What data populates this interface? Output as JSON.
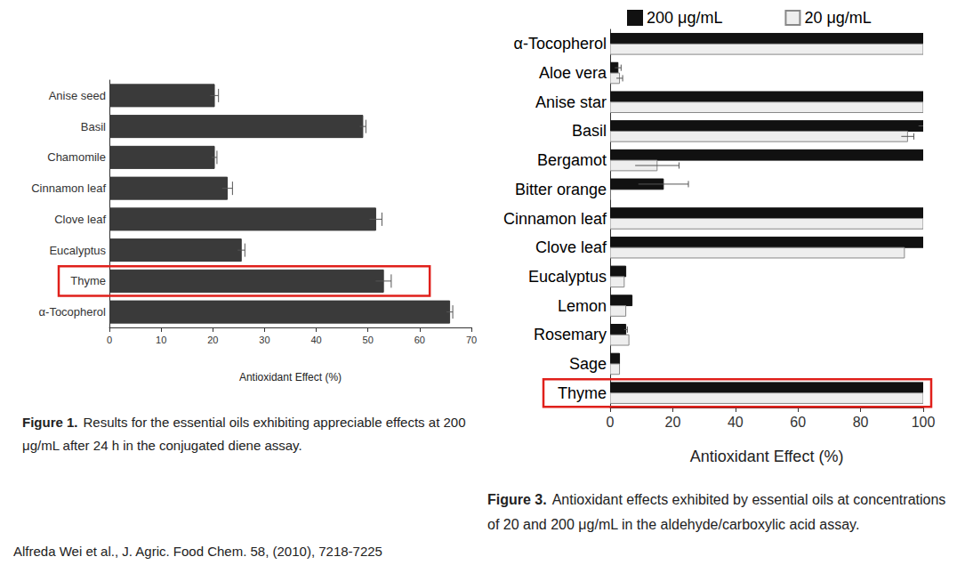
{
  "chart_data": [
    {
      "type": "bar",
      "orientation": "horizontal",
      "categories": [
        "Anise seed",
        "Basil",
        "Chamomile",
        "Cinnamon leaf",
        "Clove leaf",
        "Eucalyptus",
        "Thyme",
        "α-Tocopherol"
      ],
      "values": [
        20.3,
        49,
        20.3,
        22.8,
        51.5,
        25.5,
        53,
        65.8
      ],
      "errors": [
        0.8,
        0.6,
        0.5,
        1.0,
        1.2,
        0.7,
        1.5,
        0.6
      ],
      "color": "#3a3a3a",
      "xlabel": "Antioxidant Effect (%)",
      "xlim": [
        0,
        70
      ],
      "xticks": [
        0,
        10,
        20,
        30,
        40,
        50,
        60,
        70
      ],
      "grid": false,
      "caption": {
        "label": "Figure 1.",
        "text": "Results for the essential oils exhibiting appreciable effects at 200 μg/mL after 24 h in the conjugated diene assay."
      },
      "annotations": [
        {
          "shape": "box",
          "category": "Thyme",
          "color": "#e0201b"
        }
      ]
    },
    {
      "type": "bar",
      "orientation": "horizontal",
      "categories": [
        "α-Tocopherol",
        "Aloe vera",
        "Anise star",
        "Basil",
        "Bergamot",
        "Bitter orange",
        "Cinnamon leaf",
        "Clove leaf",
        "Eucalyptus",
        "Lemon",
        "Rosemary",
        "Sage",
        "Thyme"
      ],
      "series": [
        {
          "name": "200 μg/mL",
          "color": "#111111",
          "values": [
            100,
            2.5,
            100,
            100,
            100,
            17,
            100,
            100,
            5,
            7,
            5,
            3,
            100
          ],
          "errors": [
            0,
            1,
            0,
            1.5,
            0,
            8,
            0,
            0,
            0,
            0,
            0.5,
            0,
            0
          ]
        },
        {
          "name": "20 μg/mL",
          "color": "#eeeeee",
          "values": [
            100,
            3,
            100,
            95,
            15,
            0,
            100,
            94,
            4.5,
            5,
            6,
            3,
            100
          ],
          "errors": [
            0,
            1,
            0,
            2,
            7,
            0,
            0,
            0,
            0,
            0,
            0,
            0,
            0
          ]
        }
      ],
      "xlabel": "Antioxidant Effect (%)",
      "xlim": [
        0,
        100
      ],
      "xticks": [
        0,
        20,
        40,
        60,
        80,
        100
      ],
      "grid": false,
      "legend": "top",
      "caption": {
        "label": "Figure 3.",
        "text": "Antioxidant effects exhibited by essential oils at concentrations of 20 and 200 μg/mL in the aldehyde/carboxylic acid assay."
      },
      "annotations": [
        {
          "shape": "box",
          "category": "Thyme",
          "color": "#e0201b"
        }
      ]
    }
  ],
  "source": "Alfreda Wei et al., J. Agric. Food Chem. 58, (2010), 7218-7225"
}
